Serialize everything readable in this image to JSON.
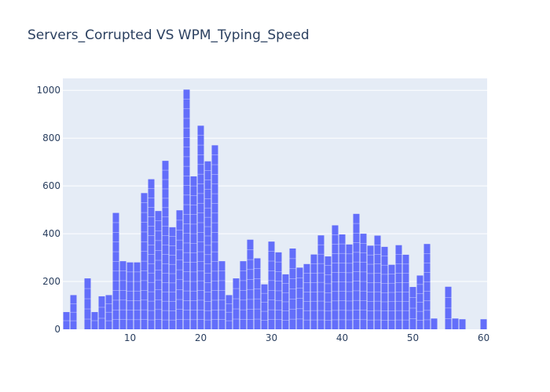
{
  "chart_data": {
    "type": "bar",
    "title": "Servers_Corrupted VS WPM_Typing_Speed",
    "xlabel": "",
    "ylabel": "",
    "x": [
      1,
      2,
      4,
      5,
      6,
      7,
      8,
      9,
      10,
      11,
      12,
      13,
      14,
      15,
      16,
      17,
      18,
      19,
      20,
      21,
      22,
      23,
      24,
      25,
      26,
      27,
      28,
      29,
      30,
      31,
      32,
      33,
      34,
      35,
      36,
      37,
      38,
      39,
      40,
      41,
      42,
      43,
      44,
      45,
      46,
      47,
      48,
      49,
      50,
      51,
      52,
      53,
      55,
      56,
      57,
      60
    ],
    "values": [
      72,
      143,
      213,
      72,
      138,
      143,
      487,
      285,
      280,
      280,
      570,
      628,
      495,
      705,
      427,
      498,
      1003,
      640,
      852,
      703,
      770,
      285,
      143,
      213,
      285,
      375,
      297,
      188,
      367,
      322,
      230,
      338,
      258,
      273,
      313,
      393,
      305,
      435,
      397,
      355,
      483,
      400,
      350,
      392,
      345,
      270,
      352,
      312,
      177,
      225,
      357,
      45,
      178,
      45,
      42,
      42
    ],
    "xlim": [
      0.5,
      60.5
    ],
    "ylim": [
      0,
      1050
    ],
    "xticks": [
      10,
      20,
      30,
      40,
      50,
      60
    ],
    "yticks": [
      0,
      200,
      400,
      600,
      800,
      1000
    ],
    "grid": true,
    "colors": {
      "bar": "#636efa",
      "plot_bg": "#e5ecf6",
      "grid": "#ffffff",
      "text": "#2a3f5f"
    }
  }
}
